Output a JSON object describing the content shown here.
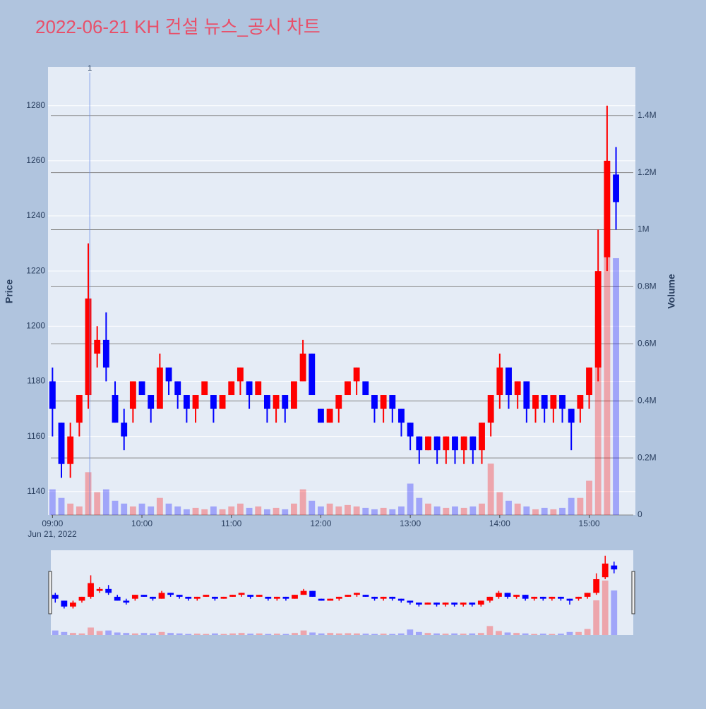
{
  "chart_data": {
    "type": "candlestick",
    "title": "2022-06-21 KH 건설 뉴스_공시 차트",
    "yaxis_title": "Price",
    "y2axis_title": "Volume",
    "x_date_label": "Jun 21, 2022",
    "increasing_color": "#ff0000",
    "decreasing_color": "#0000ff",
    "x": [
      "2022-06-21 09:00",
      "2022-06-21 09:06",
      "2022-06-21 09:12",
      "2022-06-21 09:18",
      "2022-06-21 09:24",
      "2022-06-21 09:30",
      "2022-06-21 09:36",
      "2022-06-21 09:42",
      "2022-06-21 09:48",
      "2022-06-21 09:54",
      "2022-06-21 10:00",
      "2022-06-21 10:06",
      "2022-06-21 10:12",
      "2022-06-21 10:18",
      "2022-06-21 10:24",
      "2022-06-21 10:30",
      "2022-06-21 10:36",
      "2022-06-21 10:42",
      "2022-06-21 10:48",
      "2022-06-21 10:54",
      "2022-06-21 11:00",
      "2022-06-21 11:06",
      "2022-06-21 11:12",
      "2022-06-21 11:18",
      "2022-06-21 11:24",
      "2022-06-21 11:30",
      "2022-06-21 11:36",
      "2022-06-21 11:42",
      "2022-06-21 11:48",
      "2022-06-21 11:54",
      "2022-06-21 12:00",
      "2022-06-21 12:06",
      "2022-06-21 12:12",
      "2022-06-21 12:18",
      "2022-06-21 12:24",
      "2022-06-21 12:30",
      "2022-06-21 12:36",
      "2022-06-21 12:42",
      "2022-06-21 12:48",
      "2022-06-21 12:54",
      "2022-06-21 13:00",
      "2022-06-21 13:06",
      "2022-06-21 13:12",
      "2022-06-21 13:18",
      "2022-06-21 13:24",
      "2022-06-21 13:30",
      "2022-06-21 13:36",
      "2022-06-21 13:42",
      "2022-06-21 13:48",
      "2022-06-21 13:54",
      "2022-06-21 14:00",
      "2022-06-21 14:06",
      "2022-06-21 14:12",
      "2022-06-21 14:18",
      "2022-06-21 14:24",
      "2022-06-21 14:30",
      "2022-06-21 14:36",
      "2022-06-21 14:42",
      "2022-06-21 14:48",
      "2022-06-21 14:54",
      "2022-06-21 15:00",
      "2022-06-21 15:06",
      "2022-06-21 15:12",
      "2022-06-21 15:18"
    ],
    "open": [
      1180,
      1165,
      1150,
      1165,
      1175,
      1190,
      1195,
      1175,
      1165,
      1170,
      1180,
      1175,
      1170,
      1185,
      1180,
      1175,
      1170,
      1175,
      1175,
      1170,
      1175,
      1180,
      1180,
      1175,
      1175,
      1170,
      1175,
      1170,
      1180,
      1190,
      1170,
      1165,
      1170,
      1175,
      1180,
      1180,
      1175,
      1170,
      1175,
      1170,
      1165,
      1160,
      1155,
      1160,
      1155,
      1160,
      1155,
      1160,
      1155,
      1165,
      1175,
      1185,
      1175,
      1180,
      1170,
      1175,
      1170,
      1175,
      1170,
      1170,
      1175,
      1185,
      1225,
      1255
    ],
    "high": [
      1185,
      1165,
      1165,
      1175,
      1230,
      1200,
      1205,
      1180,
      1170,
      1180,
      1180,
      1175,
      1190,
      1185,
      1180,
      1175,
      1175,
      1180,
      1175,
      1175,
      1180,
      1185,
      1180,
      1180,
      1175,
      1175,
      1175,
      1180,
      1195,
      1190,
      1170,
      1170,
      1175,
      1180,
      1185,
      1180,
      1175,
      1175,
      1175,
      1170,
      1165,
      1160,
      1160,
      1160,
      1160,
      1160,
      1160,
      1160,
      1165,
      1175,
      1190,
      1185,
      1180,
      1180,
      1175,
      1175,
      1175,
      1175,
      1170,
      1175,
      1185,
      1235,
      1280,
      1265
    ],
    "low": [
      1160,
      1145,
      1145,
      1160,
      1170,
      1185,
      1180,
      1165,
      1155,
      1165,
      1175,
      1165,
      1170,
      1175,
      1170,
      1165,
      1165,
      1175,
      1165,
      1170,
      1175,
      1175,
      1170,
      1175,
      1165,
      1165,
      1165,
      1170,
      1180,
      1175,
      1165,
      1165,
      1165,
      1175,
      1175,
      1175,
      1165,
      1165,
      1165,
      1160,
      1155,
      1150,
      1155,
      1150,
      1150,
      1150,
      1150,
      1150,
      1150,
      1160,
      1170,
      1170,
      1170,
      1165,
      1165,
      1165,
      1165,
      1165,
      1155,
      1165,
      1170,
      1180,
      1220,
      1235
    ],
    "close": [
      1170,
      1150,
      1160,
      1175,
      1210,
      1195,
      1185,
      1165,
      1160,
      1180,
      1175,
      1170,
      1185,
      1180,
      1175,
      1170,
      1175,
      1180,
      1170,
      1175,
      1180,
      1185,
      1175,
      1180,
      1170,
      1175,
      1170,
      1180,
      1190,
      1175,
      1165,
      1170,
      1175,
      1180,
      1185,
      1175,
      1170,
      1175,
      1170,
      1165,
      1160,
      1155,
      1160,
      1155,
      1160,
      1155,
      1160,
      1155,
      1165,
      1175,
      1185,
      1175,
      1180,
      1170,
      1175,
      1170,
      1175,
      1170,
      1165,
      1175,
      1185,
      1220,
      1260,
      1245
    ],
    "volume": [
      90000,
      60000,
      40000,
      30000,
      150000,
      80000,
      90000,
      50000,
      40000,
      30000,
      40000,
      30000,
      60000,
      40000,
      30000,
      20000,
      25000,
      20000,
      30000,
      20000,
      30000,
      40000,
      25000,
      30000,
      20000,
      25000,
      20000,
      40000,
      90000,
      50000,
      30000,
      40000,
      30000,
      35000,
      30000,
      25000,
      20000,
      25000,
      20000,
      30000,
      110000,
      60000,
      40000,
      30000,
      25000,
      30000,
      25000,
      30000,
      40000,
      180000,
      80000,
      50000,
      40000,
      30000,
      20000,
      25000,
      20000,
      25000,
      60000,
      60000,
      120000,
      700000,
      1100000,
      900000
    ],
    "xlim": [
      "2022-06-21 08:57",
      "2022-06-21 15:31"
    ],
    "xticks": [
      {
        "value": "2022-06-21 09:00",
        "label": "09:00"
      },
      {
        "value": "2022-06-21 10:00",
        "label": "10:00"
      },
      {
        "value": "2022-06-21 11:00",
        "label": "11:00"
      },
      {
        "value": "2022-06-21 12:00",
        "label": "12:00"
      },
      {
        "value": "2022-06-21 13:00",
        "label": "13:00"
      },
      {
        "value": "2022-06-21 14:00",
        "label": "14:00"
      },
      {
        "value": "2022-06-21 15:00",
        "label": "15:00"
      }
    ],
    "ylim": [
      1131.5,
      1294
    ],
    "yticks": [
      1140,
      1160,
      1180,
      1200,
      1220,
      1240,
      1260,
      1280
    ],
    "y2lim": [
      0,
      1570000
    ],
    "y2ticks": [
      0,
      {
        "value": 200000,
        "label": "0.2M"
      },
      {
        "value": 400000,
        "label": "0.4M"
      },
      {
        "value": 600000,
        "label": "0.6M"
      },
      {
        "value": 800000,
        "label": "0.8M"
      },
      {
        "value": 1000000,
        "label": "1M"
      },
      {
        "value": 1200000,
        "label": "1.2M"
      },
      {
        "value": 1400000,
        "label": "1.4M"
      }
    ],
    "annotations": [
      {
        "x": "2022-06-21 09:25",
        "text": "1"
      }
    ]
  }
}
